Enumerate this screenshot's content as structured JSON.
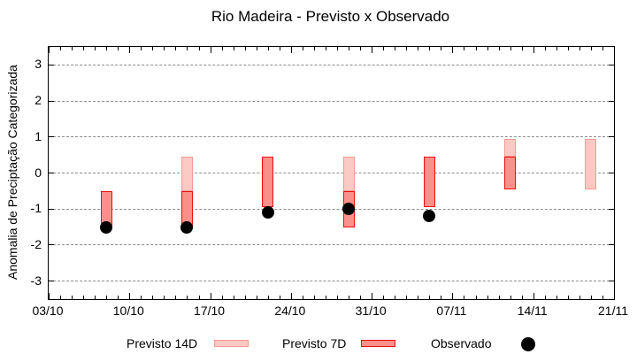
{
  "title": "Rio Madeira - Previsto x Observado",
  "colors": {
    "background": "#ffffff",
    "axis": "#000000",
    "grid": "#8c8c8c",
    "previsto14_fill": "#fac9c3",
    "previsto14_border": "#f19b94",
    "previsto7_fill": "#f9908a",
    "previsto7_border": "#e7100e",
    "observado": "#000000"
  },
  "chart_data": {
    "type": "candlestick",
    "title": "Rio Madeira - Previsto x Observado",
    "xlabel": "",
    "ylabel": "Anomalia de Preciptação Categorizada",
    "ylim": [
      -3.5,
      3.5
    ],
    "y_ticks": [
      3,
      2,
      1,
      0,
      -1,
      -2,
      -3
    ],
    "grid": "horizontal-dashed",
    "legend_position": "bottom",
    "x_axis": {
      "tick_labels": [
        "03/10",
        "10/10",
        "17/10",
        "24/10",
        "31/10",
        "07/11",
        "14/11",
        "21/11"
      ],
      "tick_day_offsets": [
        0,
        7,
        14,
        21,
        28,
        35,
        42,
        49
      ],
      "minor_tick_every_days": 1,
      "total_days": 49
    },
    "series": [
      {
        "name": "Previsto 14D",
        "type": "box",
        "points": [
          {
            "date": "15/10",
            "day": 12,
            "low": -0.5,
            "high": 0.45
          },
          {
            "date": "29/10",
            "day": 26,
            "low": -0.5,
            "high": 0.45
          },
          {
            "date": "12/11",
            "day": 40,
            "low": 0.45,
            "high": 0.95
          },
          {
            "date": "19/11",
            "day": 47,
            "low": -0.45,
            "high": 0.95
          }
        ]
      },
      {
        "name": "Previsto 7D",
        "type": "box",
        "points": [
          {
            "date": "08/10",
            "day": 5,
            "low": -1.5,
            "high": -0.5
          },
          {
            "date": "15/10",
            "day": 12,
            "low": -1.5,
            "high": -0.5
          },
          {
            "date": "22/10",
            "day": 19,
            "low": -0.95,
            "high": 0.45
          },
          {
            "date": "29/10",
            "day": 26,
            "low": -1.5,
            "high": -0.5
          },
          {
            "date": "05/11",
            "day": 33,
            "low": -0.95,
            "high": 0.45
          },
          {
            "date": "12/11",
            "day": 40,
            "low": -0.45,
            "high": 0.45
          }
        ]
      },
      {
        "name": "Observado",
        "type": "point",
        "points": [
          {
            "date": "08/10",
            "day": 5,
            "value": -1.5
          },
          {
            "date": "15/10",
            "day": 12,
            "value": -1.5
          },
          {
            "date": "22/10",
            "day": 19,
            "value": -1.1
          },
          {
            "date": "29/10",
            "day": 26,
            "value": -1.0
          },
          {
            "date": "05/11",
            "day": 33,
            "value": -1.2
          }
        ]
      }
    ],
    "legend": [
      {
        "label": "Previsto 14D",
        "swatch": "box-light"
      },
      {
        "label": "Previsto 7D",
        "swatch": "box-red"
      },
      {
        "label": "Observado",
        "swatch": "dot"
      }
    ]
  }
}
